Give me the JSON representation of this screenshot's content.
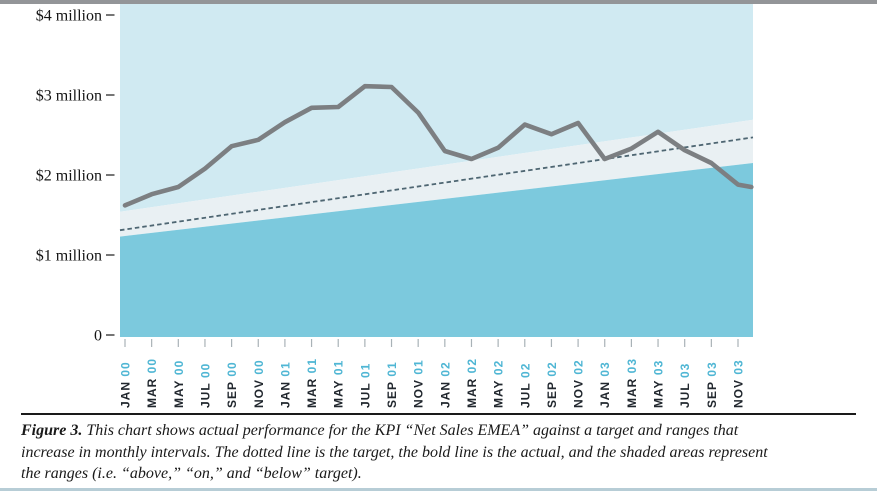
{
  "colors": {
    "above_fill": "#d0eaf2",
    "on_fill": "#e9f0f3",
    "below_fill": "#7cc9dd",
    "actual_line": "#7c7f82",
    "target_line": "#4e6672",
    "month_text": "#21272e",
    "year_text": "#4fb6d4",
    "x_tick": "#a9b2b7",
    "y_tick": "#3a3a3a",
    "y_label_text": "#141414",
    "top_bar": "#939598",
    "divider": "#1a1a1a",
    "bottom_edge": "#b7cdd6"
  },
  "chart_data": {
    "type": "line",
    "title": "",
    "categories": [
      "JAN 00",
      "MAR 00",
      "MAY 00",
      "JUL 00",
      "SEP 00",
      "NOV 00",
      "JAN 01",
      "MAR 01",
      "MAY 01",
      "JUL 01",
      "SEP 01",
      "NOV 01",
      "JAN 02",
      "MAR 02",
      "MAY 02",
      "JUL 02",
      "SEP 02",
      "NOV 02",
      "JAN 03",
      "MAR 03",
      "MAY 03",
      "JUL 03",
      "SEP 03",
      "NOV 03"
    ],
    "series": [
      {
        "name": "actual",
        "style": "bold solid gray line",
        "values": [
          1.62,
          1.76,
          1.85,
          2.08,
          2.36,
          2.44,
          2.66,
          2.84,
          2.85,
          3.11,
          3.1,
          2.78,
          2.3,
          2.2,
          2.34,
          2.63,
          2.51,
          2.65,
          2.2,
          2.33,
          2.54,
          2.31,
          2.15,
          1.88
        ],
        "end_value": 1.85
      },
      {
        "name": "target",
        "style": "dotted line, rises linearly in monthly intervals",
        "start_value": 1.31,
        "end_value": 2.47
      }
    ],
    "ranges": {
      "names": [
        "above",
        "on",
        "below"
      ],
      "on_band_top": {
        "start": 1.54,
        "end": 2.69
      },
      "on_band_bottom": {
        "start": 1.23,
        "end": 2.15
      }
    },
    "y_axis": {
      "range": [
        0,
        4.15
      ],
      "ticks": [
        {
          "value": 4,
          "label": "$4 million"
        },
        {
          "value": 3,
          "label": "$3 million"
        },
        {
          "value": 2,
          "label": "$2 million"
        },
        {
          "value": 1,
          "label": "$1 million"
        },
        {
          "value": 0,
          "label": "0"
        }
      ]
    },
    "grid": false,
    "legend": "none"
  },
  "caption": {
    "label": "Figure 3.",
    "lines": [
      " This chart shows actual performance for the KPI “Net Sales EMEA” against a target and ranges that",
      "increase in monthly intervals. The dotted line is the target, the bold line is the actual, and the shaded areas represent",
      "the ranges (i.e. “above,” “on,” and “below” target)."
    ]
  }
}
